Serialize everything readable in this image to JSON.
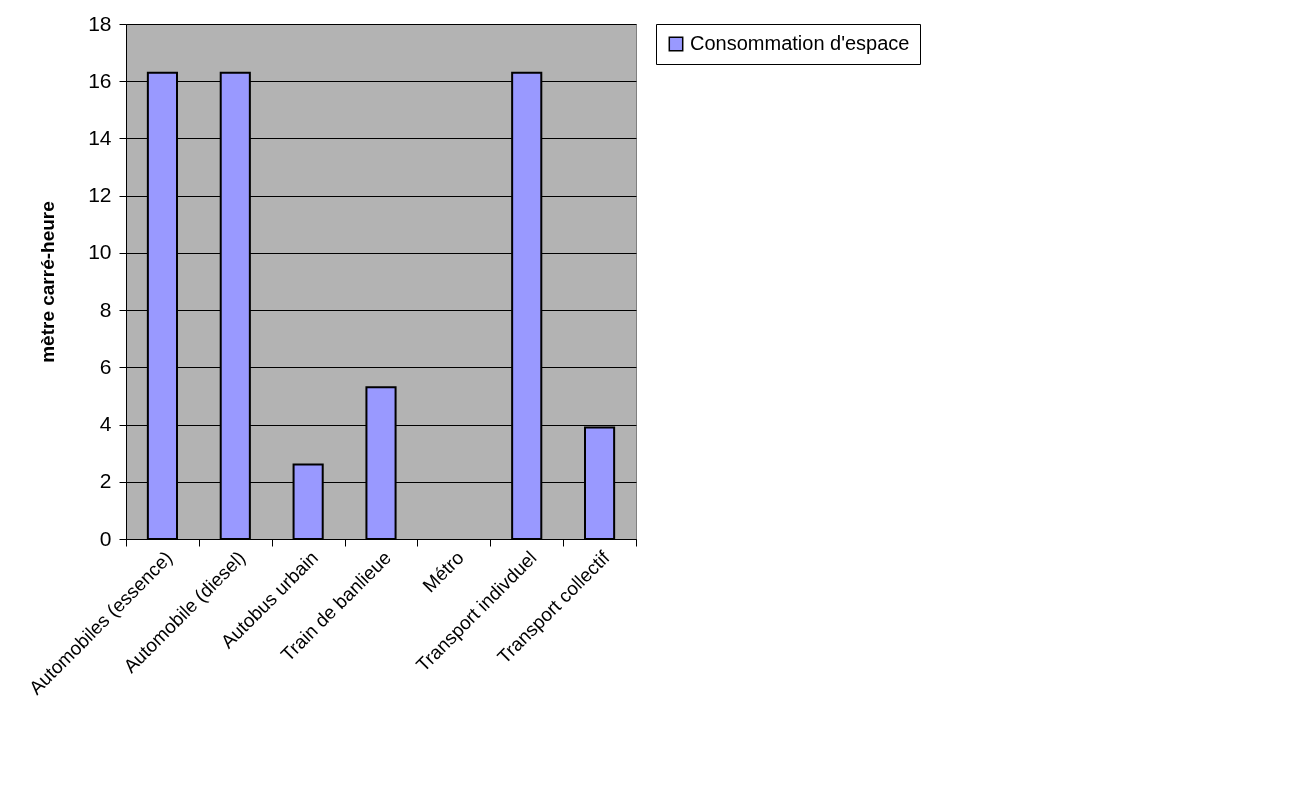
{
  "chart_data": {
    "type": "bar",
    "ylabel": "mètre carré-heure",
    "categories": [
      "Automobiles (essence)",
      "Automobile (diesel)",
      "Autobus urbain",
      "Train de banlieue",
      "Métro",
      "Transport indivduel",
      "Transport collectif"
    ],
    "series": [
      {
        "name": "Consommation d'espace",
        "color": "#9999ff",
        "values": [
          16.3,
          16.3,
          2.6,
          5.3,
          null,
          16.3,
          3.9
        ]
      }
    ],
    "ylim": [
      0,
      18
    ],
    "yticks": [
      0,
      2,
      4,
      6,
      8,
      10,
      12,
      14,
      16,
      18
    ],
    "grid": "y",
    "legend": "right"
  }
}
